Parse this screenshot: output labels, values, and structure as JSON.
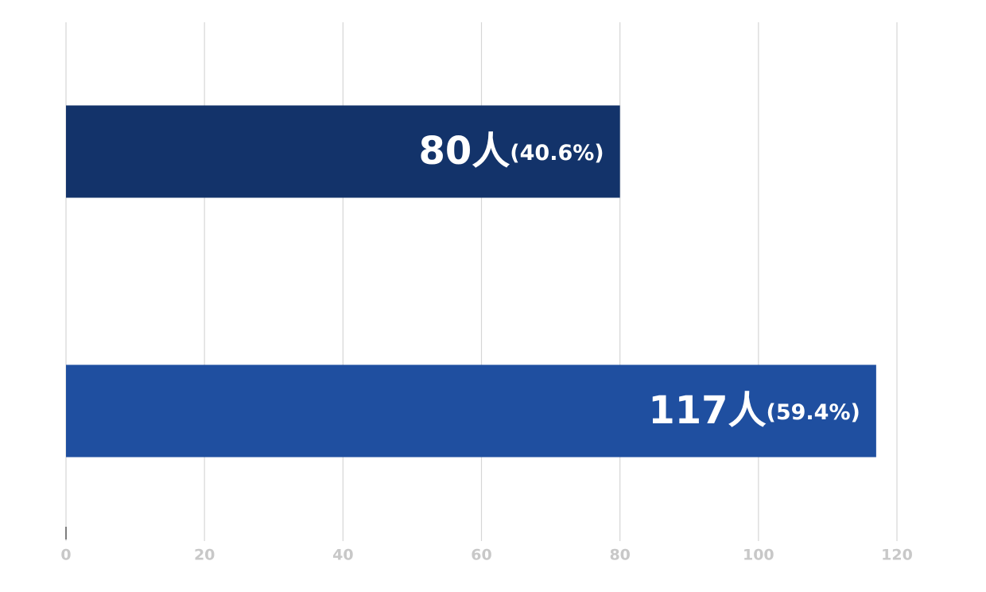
{
  "chart_data": {
    "type": "hbar",
    "categories": [
      null,
      null
    ],
    "values": [
      80,
      117
    ],
    "value_labels": [
      "80人(40.6%)",
      "117人(59.4%)"
    ],
    "colors": [
      "#13336a",
      "#1f4fa0"
    ],
    "xlim": [
      0,
      120
    ],
    "xticks": [
      0,
      20,
      40,
      60,
      80,
      100,
      120
    ],
    "grid": true
  }
}
